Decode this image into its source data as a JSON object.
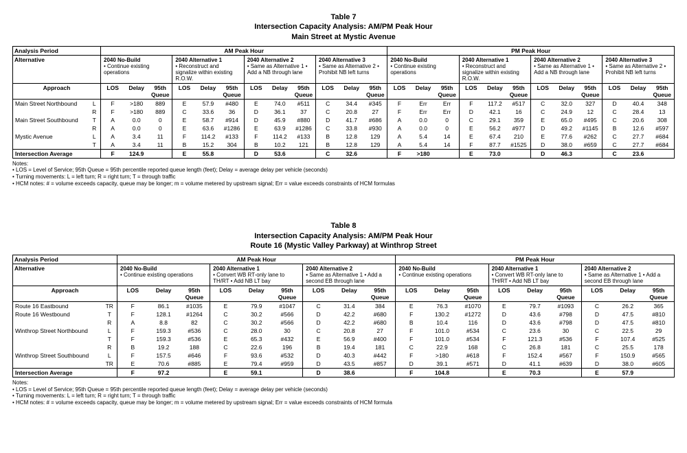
{
  "table7": {
    "title": [
      "Table 7",
      "Intersection Capacity Analysis: AM/PM Peak Hour",
      "Main Street at Mystic Avenue"
    ],
    "periodLabel": "Analysis Period",
    "altLabel": "Alternative",
    "approachLabel": "Approach",
    "amLabel": "AM Peak Hour",
    "pmLabel": "PM Peak Hour",
    "colHeads": [
      "LOS",
      "Delay",
      "95th Queue"
    ],
    "alts": [
      {
        "head": "2040 No-Build",
        "desc": "• Continue existing operations"
      },
      {
        "head": "2040 Alternative 1",
        "desc": "• Reconstruct and signalize within existing R.O.W."
      },
      {
        "head": "2040 Alternative 2",
        "desc": "• Same as Alternative 1\n• Add a NB through lane"
      },
      {
        "head": "2040 Alternative 3",
        "desc": "• Same as Alternative 2\n• Prohibit NB left turns"
      },
      {
        "head": "2040 No-Build",
        "desc": "• Continue existing operations"
      },
      {
        "head": "2040 Alternative 1",
        "desc": "• Reconstruct and signalize within existing R.O.W."
      },
      {
        "head": "2040 Alternative 2",
        "desc": "• Same as Alternative 1\n• Add a NB through lane"
      },
      {
        "head": "2040 Alternative 3",
        "desc": "• Same as Alternative 2\n• Prohibit NB left turns"
      }
    ],
    "rows": [
      {
        "name": "Main Street Northbound",
        "mv": "L",
        "v": [
          "F",
          ">180",
          "889",
          "E",
          "57.9",
          "#480",
          "E",
          "74.0",
          "#511",
          "C",
          "34.4",
          "#345",
          "F",
          "Err",
          "Err",
          "F",
          "117.2",
          "#517",
          "C",
          "32.0",
          "327",
          "D",
          "40.4",
          "348"
        ]
      },
      {
        "name": "",
        "mv": "R",
        "v": [
          "F",
          ">180",
          "889",
          "C",
          "33.6",
          "36",
          "D",
          "36.1",
          "37",
          "C",
          "20.8",
          "27",
          "F",
          "Err",
          "Err",
          "D",
          "42.1",
          "16",
          "C",
          "24.9",
          "12",
          "C",
          "28.4",
          "13"
        ]
      },
      {
        "name": "Main Street Southbound",
        "mv": "T",
        "v": [
          "A",
          "0.0",
          "0",
          "E",
          "58.7",
          "#914",
          "D",
          "45.9",
          "#880",
          "D",
          "41.7",
          "#686",
          "A",
          "0.0",
          "0",
          "C",
          "29.1",
          "359",
          "E",
          "65.0",
          "#495",
          "C",
          "20.6",
          "308"
        ]
      },
      {
        "name": "",
        "mv": "R",
        "v": [
          "A",
          "0.0",
          "0",
          "E",
          "63.6",
          "#1286",
          "E",
          "63.9",
          "#1286",
          "C",
          "33.8",
          "#930",
          "A",
          "0.0",
          "0",
          "E",
          "56.2",
          "#977",
          "D",
          "49.2",
          "#1145",
          "B",
          "12.6",
          "#597"
        ]
      },
      {
        "name": "Mystic Avenue",
        "mv": "L",
        "v": [
          "A",
          "3.4",
          "11",
          "F",
          "114.2",
          "#133",
          "F",
          "114.2",
          "#133",
          "B",
          "12.8",
          "129",
          "A",
          "5.4",
          "14",
          "E",
          "67.4",
          "210",
          "E",
          "77.6",
          "#262",
          "C",
          "27.7",
          "#684"
        ]
      },
      {
        "name": "",
        "mv": "T",
        "v": [
          "A",
          "3.4",
          "11",
          "B",
          "15.2",
          "304",
          "B",
          "10.2",
          "121",
          "B",
          "12.8",
          "129",
          "A",
          "5.4",
          "14",
          "F",
          "87.7",
          "#1525",
          "D",
          "38.0",
          "#659",
          "C",
          "27.7",
          "#684"
        ]
      }
    ],
    "avg": {
      "name": "Intersection Average",
      "v": [
        "F",
        "124.9",
        "",
        "E",
        "55.8",
        "",
        "D",
        "53.6",
        "",
        "C",
        "32.6",
        "",
        "F",
        ">180",
        "",
        "E",
        "73.0",
        "",
        "D",
        "46.3",
        "",
        "C",
        "23.6",
        ""
      ]
    },
    "notes": [
      "• LOS = Level of Service; 95th Queue = 95th percentile reported queue length (feet); Delay  = average delay per vehicle (seconds)",
      "• Turning movements: L = left turn; R = right turn; T = through traffic",
      "• HCM notes: # = volume exceeds capacity, queue may be longer; m = volume metered by upstream signal; Err = value exceeds constraints of HCM formulas"
    ]
  },
  "table8": {
    "title": [
      "Table 8",
      "Intersection Capacity Analysis: AM/PM Peak Hour",
      "Route 16 (Mystic Valley Parkway) at Winthrop Street"
    ],
    "periodLabel": "Analysis Period",
    "altLabel": "Alternative",
    "approachLabel": "Approach",
    "amLabel": "AM Peak Hour",
    "pmLabel": "PM Peak Hour",
    "colHeads": [
      "LOS",
      "Delay",
      "95th Queue"
    ],
    "alts": [
      {
        "head": "2040 No-Build",
        "desc": "• Continue existing operations"
      },
      {
        "head": "2040 Alternative 1",
        "desc": "• Convert WB RT-only lane to TH/RT\n• Add NB LT bay"
      },
      {
        "head": "2040 Alternative 2",
        "desc": "• Same as Alternative 1\n• Add a second EB through lane"
      },
      {
        "head": "2040 No-Build",
        "desc": "• Continue existing operations"
      },
      {
        "head": "2040 Alternative 1",
        "desc": "• Convert WB RT-only lane to TH/RT\n• Add NB LT bay"
      },
      {
        "head": "2040 Alternative 2",
        "desc": "• Same as Alternative 1\n• Add a second EB through lane"
      }
    ],
    "rows": [
      {
        "name": "Route 16 Eastbound",
        "mv": "TR",
        "v": [
          "F",
          "86.1",
          "#1035",
          "E",
          "79.9",
          "#1047",
          "C",
          "31.4",
          "384",
          "E",
          "76.3",
          "#1070",
          "E",
          "79.7",
          "#1093",
          "C",
          "26.2",
          "365"
        ]
      },
      {
        "name": "Route 16 Westbound",
        "mv": "T",
        "v": [
          "F",
          "128.1",
          "#1264",
          "C",
          "30.2",
          "#566",
          "D",
          "42.2",
          "#680",
          "F",
          "130.2",
          "#1272",
          "D",
          "43.6",
          "#798",
          "D",
          "47.5",
          "#810"
        ]
      },
      {
        "name": "",
        "mv": "R",
        "v": [
          "A",
          "8.8",
          "82",
          "C",
          "30.2",
          "#566",
          "D",
          "42.2",
          "#680",
          "B",
          "10.4",
          "116",
          "D",
          "43.6",
          "#798",
          "D",
          "47.5",
          "#810"
        ]
      },
      {
        "name": "Winthrop Street Northbound",
        "mv": "L",
        "v": [
          "F",
          "159.3",
          "#536",
          "C",
          "28.0",
          "30",
          "C",
          "20.8",
          "27",
          "F",
          "101.0",
          "#534",
          "C",
          "23.6",
          "30",
          "C",
          "22.5",
          "29"
        ]
      },
      {
        "name": "",
        "mv": "T",
        "v": [
          "F",
          "159.3",
          "#536",
          "E",
          "65.3",
          "#432",
          "E",
          "56.9",
          "#400",
          "F",
          "101.0",
          "#534",
          "F",
          "121.3",
          "#536",
          "F",
          "107.4",
          "#525"
        ]
      },
      {
        "name": "",
        "mv": "R",
        "v": [
          "B",
          "19.2",
          "188",
          "C",
          "22.6",
          "196",
          "B",
          "19.4",
          "181",
          "C",
          "22.9",
          "168",
          "C",
          "26.8",
          "181",
          "C",
          "25.5",
          "178"
        ]
      },
      {
        "name": "Winthrop Street Southbound",
        "mv": "L",
        "v": [
          "F",
          "157.5",
          "#646",
          "F",
          "93.6",
          "#532",
          "D",
          "40.3",
          "#442",
          "F",
          ">180",
          "#618",
          "F",
          "152.4",
          "#567",
          "F",
          "150.9",
          "#565"
        ]
      },
      {
        "name": "",
        "mv": "TR",
        "v": [
          "E",
          "70.6",
          "#885",
          "E",
          "79.4",
          "#959",
          "D",
          "43.5",
          "#857",
          "D",
          "39.1",
          "#571",
          "D",
          "41.1",
          "#639",
          "D",
          "38.0",
          "#605"
        ]
      }
    ],
    "avg": {
      "name": "Intersection Average",
      "v": [
        "F",
        "97.2",
        "",
        "E",
        "59.1",
        "",
        "D",
        "38.6",
        "",
        "F",
        "104.8",
        "",
        "E",
        "70.3",
        "",
        "E",
        "57.9",
        ""
      ]
    },
    "notes": [
      "• LOS = Level of Service; 95th Queue = 95th percentile reported queue length (feet); Delay  = average delay per vehicle (seconds)",
      "• Turning movements: L = left turn; R = right turn; T = through traffic",
      "• HCM notes: # = volume exceeds capacity, queue may be longer; m = volume metered by upstream signal; Err = value exceeds constraints of HCM formula"
    ]
  }
}
